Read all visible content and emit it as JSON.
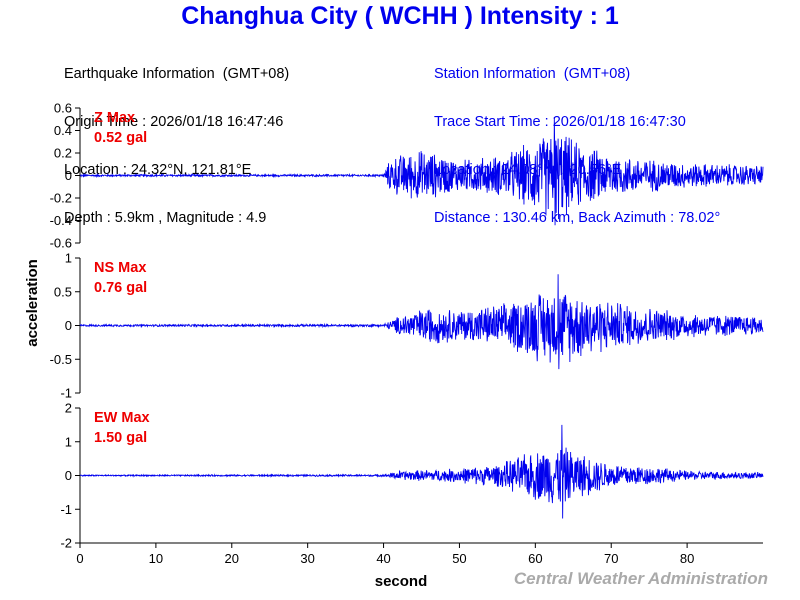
{
  "title": "Changhua City ( WCHH ) Intensity : 1",
  "earthquake_info": {
    "heading": "Earthquake Information  (GMT+08)",
    "origin_time": "Origin Time : 2026/01/18 16:47:46",
    "location": "Location : 24.32°N, 121.81°E",
    "depth_magnitude": "Depth : 5.9km , Magnitude : 4.9"
  },
  "station_info": {
    "heading": "Station Information  (GMT+08)",
    "trace_start": "Trace Start Time : 2026/01/18 16:47:30",
    "location": "Location : 24.08°N, 120.56°E",
    "distance": "Distance : 130.46 km, Back Azimuth : 78.02°"
  },
  "footer": "Central Weather Administration",
  "colors": {
    "trace": "#0000ee",
    "title": "#0000ee",
    "max_label": "#ee0000",
    "footer": "#aaaaaa"
  },
  "chart_data": [
    {
      "type": "line",
      "component": "Z",
      "max_label": "Z Max",
      "max_value": "0.52 gal",
      "ylim": [
        -0.6,
        0.6
      ],
      "yticks": [
        0.6,
        0.4,
        0.2,
        0,
        -0.2,
        -0.4,
        -0.6
      ],
      "ytick_labels": [
        "0.6",
        "0.4",
        "0.2",
        "0",
        "-0.2",
        "-0.4",
        "-0.6"
      ],
      "xlim": [
        0,
        90
      ],
      "peak": 0.52,
      "envelope": [
        [
          0,
          0.01
        ],
        [
          40,
          0.01
        ],
        [
          41,
          0.18
        ],
        [
          45,
          0.25
        ],
        [
          50,
          0.15
        ],
        [
          56,
          0.2
        ],
        [
          60,
          0.35
        ],
        [
          63,
          0.45
        ],
        [
          66,
          0.3
        ],
        [
          70,
          0.2
        ],
        [
          80,
          0.12
        ],
        [
          90,
          0.1
        ]
      ]
    },
    {
      "type": "line",
      "component": "NS",
      "max_label": "NS Max",
      "max_value": "0.76 gal",
      "ylim": [
        -1,
        1
      ],
      "yticks": [
        1,
        0.5,
        0,
        -0.5,
        -1
      ],
      "ytick_labels": [
        "1",
        "0.5",
        "0",
        "-0.5",
        "-1"
      ],
      "xlim": [
        0,
        90
      ],
      "peak": 0.76,
      "envelope": [
        [
          0,
          0.015
        ],
        [
          40,
          0.02
        ],
        [
          42,
          0.15
        ],
        [
          46,
          0.3
        ],
        [
          50,
          0.25
        ],
        [
          56,
          0.35
        ],
        [
          60,
          0.55
        ],
        [
          64,
          0.6
        ],
        [
          68,
          0.45
        ],
        [
          72,
          0.35
        ],
        [
          80,
          0.2
        ],
        [
          90,
          0.15
        ]
      ]
    },
    {
      "type": "line",
      "component": "EW",
      "max_label": "EW Max",
      "max_value": "1.50 gal",
      "ylim": [
        -2,
        2
      ],
      "yticks": [
        2,
        1,
        0,
        -1,
        -2
      ],
      "ytick_labels": [
        "2",
        "1",
        "0",
        "-1",
        "-2"
      ],
      "xlim": [
        0,
        90
      ],
      "peak": 1.5,
      "envelope": [
        [
          0,
          0.02
        ],
        [
          40,
          0.03
        ],
        [
          42,
          0.15
        ],
        [
          48,
          0.2
        ],
        [
          55,
          0.35
        ],
        [
          60,
          0.8
        ],
        [
          63,
          1.0
        ],
        [
          66,
          0.7
        ],
        [
          70,
          0.4
        ],
        [
          75,
          0.3
        ],
        [
          80,
          0.15
        ],
        [
          90,
          0.1
        ]
      ]
    }
  ],
  "axes": {
    "xlabel": "second",
    "ylabel": "acceleration",
    "xticks": [
      0,
      10,
      20,
      30,
      40,
      50,
      60,
      70,
      80
    ],
    "xtick_labels": [
      "0",
      "10",
      "20",
      "30",
      "40",
      "50",
      "60",
      "70",
      "80"
    ]
  }
}
